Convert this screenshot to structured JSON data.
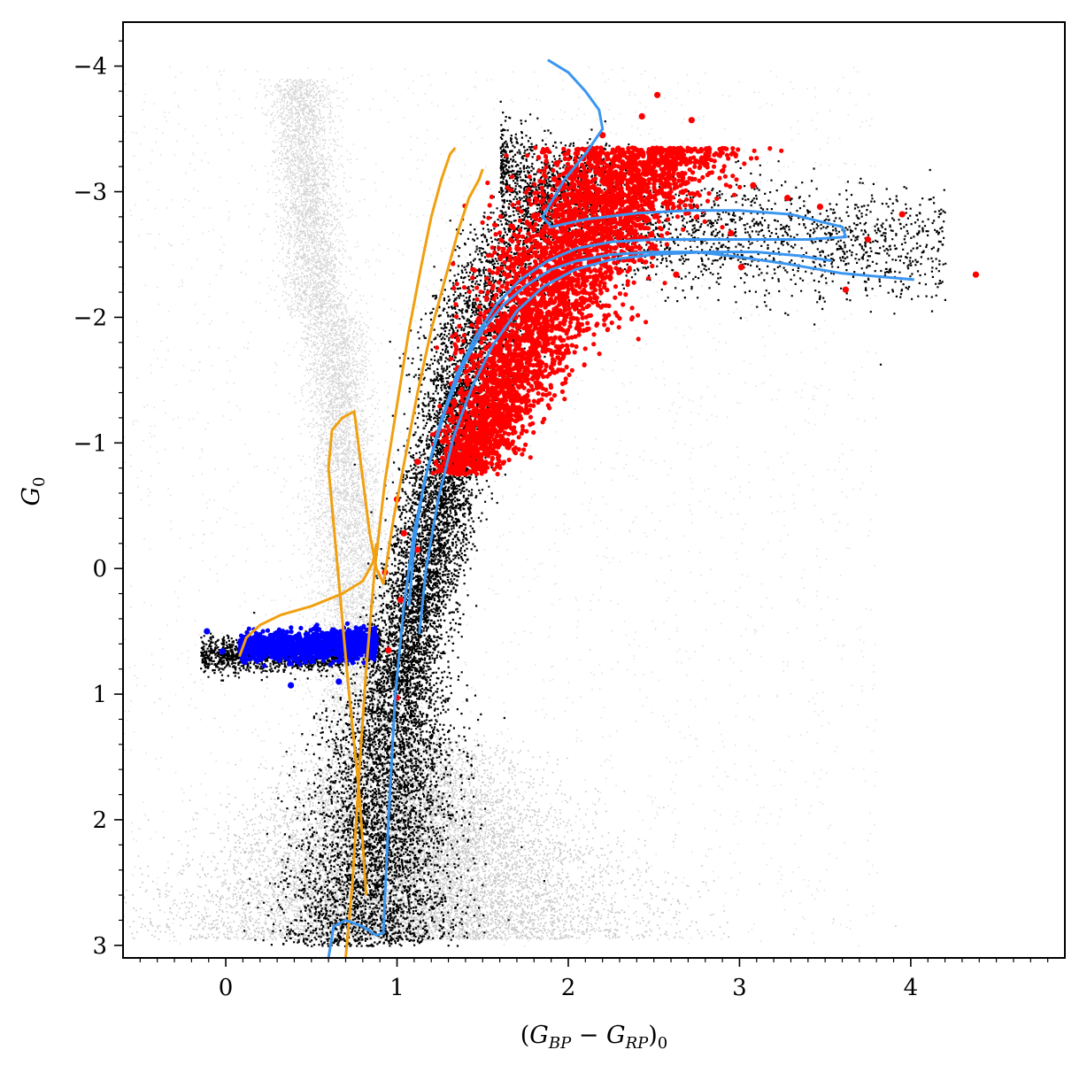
{
  "chart_data": {
    "type": "scatter",
    "xlabel": "(G_BP − G_RP)_0",
    "ylabel": "G_0",
    "xlabel_parts": [
      "(",
      "G",
      "BP",
      " − ",
      "G",
      "RP",
      ")",
      "0"
    ],
    "ylabel_parts": [
      "G",
      "0"
    ],
    "xlim": [
      -0.6,
      4.9
    ],
    "ylim": [
      3.1,
      -4.35
    ],
    "y_inverted": true,
    "xticks": [
      0,
      1,
      2,
      3,
      4
    ],
    "yticks": [
      -4,
      -3,
      -2,
      -1,
      0,
      1,
      2,
      3
    ],
    "xtick_labels": [
      "0",
      "1",
      "2",
      "3",
      "4"
    ],
    "ytick_labels": [
      "−4",
      "−3",
      "−2",
      "−1",
      "0",
      "1",
      "2",
      "3"
    ],
    "grid": false,
    "legend": "none",
    "colors": {
      "field_stars": "#808080",
      "members": "#000000",
      "red_giants": "#ff0000",
      "horizontal_branch": "#0000ff",
      "isochrone_metal_poor": "#f0a010",
      "isochrone_metal_rich": "#3a96f0"
    },
    "series": [
      {
        "kind": "density",
        "color": "#808080",
        "regions": [
          {
            "shape": "main-sequence-band",
            "x": [
              0.95,
              2.4
            ],
            "y": [
              1.6,
              3.0
            ]
          },
          {
            "shape": "giant-branch-band",
            "x": [
              0.6,
              1.5
            ],
            "y": [
              -3.8,
              1.5
            ]
          },
          {
            "shape": "halo",
            "x": [
              -0.6,
              3.5
            ],
            "y": [
              -4.0,
              3.0
            ]
          }
        ]
      },
      {
        "kind": "density",
        "color": "#000000",
        "regions": [
          {
            "shape": "rgb",
            "ridge_x": [
              0.8,
              0.9,
              1.0,
              1.15,
              1.3,
              1.45,
              1.6,
              1.8,
              2.1
            ],
            "ridge_y": [
              3.0,
              2.0,
              1.0,
              0.0,
              -1.0,
              -1.8,
              -2.4,
              -2.8,
              -3.2
            ]
          },
          {
            "shape": "hb",
            "x": [
              -0.15,
              0.9
            ],
            "y": [
              0.55,
              0.85
            ]
          }
        ]
      },
      {
        "kind": "density",
        "color": "#ff0000",
        "regions": [
          {
            "shape": "upper-rgb",
            "x": [
              1.25,
              2.55
            ],
            "y": [
              -3.4,
              -0.8
            ]
          }
        ],
        "sparse_points": [
          {
            "x": 2.52,
            "y": -3.77
          },
          {
            "x": 2.43,
            "y": -3.6
          },
          {
            "x": 2.72,
            "y": -3.57
          },
          {
            "x": 3.08,
            "y": -3.05
          },
          {
            "x": 3.28,
            "y": -2.95
          },
          {
            "x": 3.47,
            "y": -2.88
          },
          {
            "x": 3.95,
            "y": -2.82
          },
          {
            "x": 3.75,
            "y": -2.62
          },
          {
            "x": 4.38,
            "y": -2.34
          },
          {
            "x": 3.62,
            "y": -2.22
          },
          {
            "x": 3.01,
            "y": -2.4
          },
          {
            "x": 2.63,
            "y": -2.34
          },
          {
            "x": 1.12,
            "y": -0.85
          },
          {
            "x": 1.0,
            "y": -0.55
          },
          {
            "x": 1.12,
            "y": -0.15
          },
          {
            "x": 0.93,
            "y": 0.03
          },
          {
            "x": 0.95,
            "y": 0.65
          },
          {
            "x": 1.0,
            "y": 1.03
          },
          {
            "x": 1.04,
            "y": -0.28
          },
          {
            "x": 1.02,
            "y": 0.25
          },
          {
            "x": 2.2,
            "y": -3.45
          },
          {
            "x": 1.92,
            "y": -3.1
          },
          {
            "x": 2.28,
            "y": -2.92
          },
          {
            "x": 2.95,
            "y": -2.67
          },
          {
            "x": 2.4,
            "y": -3.12
          },
          {
            "x": 2.6,
            "y": -3.3
          }
        ]
      },
      {
        "kind": "density",
        "color": "#0000ff",
        "regions": [
          {
            "shape": "hb-blue",
            "x": [
              0.05,
              0.9
            ],
            "y": [
              0.52,
              0.8
            ]
          }
        ],
        "sparse_points": [
          {
            "x": -0.11,
            "y": 0.5
          },
          {
            "x": 0.38,
            "y": 0.93
          },
          {
            "x": 0.66,
            "y": 0.9
          },
          {
            "x": -0.02,
            "y": 0.66
          }
        ]
      },
      {
        "kind": "line",
        "color": "#f0a010",
        "x": [
          0.7,
          0.74,
          0.78,
          0.82,
          0.87,
          0.93,
          1.0,
          1.07,
          1.14,
          1.2,
          1.26,
          1.31,
          1.34
        ],
        "y": [
          3.1,
          2.5,
          1.6,
          0.8,
          0.0,
          -0.7,
          -1.3,
          -1.9,
          -2.4,
          -2.8,
          -3.1,
          -3.3,
          -3.35
        ]
      },
      {
        "kind": "line",
        "color": "#f0a010",
        "x": [
          0.82,
          0.78,
          0.72,
          0.68,
          0.64,
          0.6,
          0.62,
          0.68,
          0.75,
          0.84,
          0.88,
          0.92,
          0.98,
          1.05,
          1.12,
          1.2,
          1.28,
          1.36,
          1.42,
          1.48,
          1.5
        ],
        "y": [
          2.6,
          1.8,
          1.0,
          0.4,
          -0.2,
          -0.8,
          -1.1,
          -1.2,
          -1.25,
          -0.28,
          0.0,
          0.12,
          -0.4,
          -0.9,
          -1.4,
          -1.9,
          -2.3,
          -2.7,
          -2.95,
          -3.1,
          -3.18
        ]
      },
      {
        "kind": "line",
        "color": "#f0a010",
        "x": [
          0.08,
          0.12,
          0.2,
          0.32,
          0.5,
          0.68,
          0.8,
          0.86,
          0.88
        ],
        "y": [
          0.7,
          0.55,
          0.45,
          0.37,
          0.3,
          0.2,
          0.1,
          -0.05,
          -0.2
        ]
      },
      {
        "kind": "line",
        "color": "#3a96f0",
        "x": [
          0.6,
          0.63,
          0.7,
          0.8,
          0.88,
          0.92,
          0.95,
          0.99,
          1.04,
          1.1,
          1.18,
          1.28,
          1.38,
          1.5,
          1.62,
          1.75,
          1.9,
          2.05,
          2.25,
          2.5,
          2.75,
          3.0,
          3.3,
          3.6,
          4.02
        ],
        "y": [
          3.1,
          2.85,
          2.8,
          2.85,
          2.92,
          2.9,
          2.0,
          1.0,
          0.3,
          -0.3,
          -0.8,
          -1.25,
          -1.6,
          -1.9,
          -2.1,
          -2.25,
          -2.38,
          -2.45,
          -2.5,
          -2.52,
          -2.52,
          -2.48,
          -2.42,
          -2.35,
          -2.3
        ]
      },
      {
        "kind": "line",
        "color": "#3a96f0",
        "x": [
          1.07,
          1.1,
          1.16,
          1.25,
          1.35,
          1.46,
          1.58,
          1.72,
          1.88,
          2.05,
          2.25,
          2.5,
          2.8,
          3.1,
          3.4,
          3.62,
          3.6,
          3.3,
          3.0,
          2.7,
          2.4,
          2.1,
          1.9,
          1.85,
          1.98,
          2.1,
          2.2,
          2.18,
          2.1,
          2.0,
          1.88
        ],
        "y": [
          0.3,
          -0.2,
          -0.7,
          -1.15,
          -1.55,
          -1.85,
          -2.1,
          -2.3,
          -2.45,
          -2.55,
          -2.6,
          -2.62,
          -2.62,
          -2.62,
          -2.62,
          -2.64,
          -2.72,
          -2.82,
          -2.85,
          -2.85,
          -2.83,
          -2.78,
          -2.72,
          -2.8,
          -3.1,
          -3.3,
          -3.5,
          -3.65,
          -3.8,
          -3.95,
          -4.05
        ]
      },
      {
        "kind": "line",
        "color": "#3a96f0",
        "x": [
          1.13,
          1.17,
          1.24,
          1.33,
          1.44,
          1.56,
          1.7,
          1.86,
          2.04,
          2.25,
          2.5,
          2.8,
          3.1,
          3.35,
          3.54
        ],
        "y": [
          0.52,
          0.0,
          -0.55,
          -1.05,
          -1.45,
          -1.78,
          -2.05,
          -2.25,
          -2.38,
          -2.46,
          -2.5,
          -2.52,
          -2.52,
          -2.49,
          -2.45
        ]
      }
    ]
  }
}
